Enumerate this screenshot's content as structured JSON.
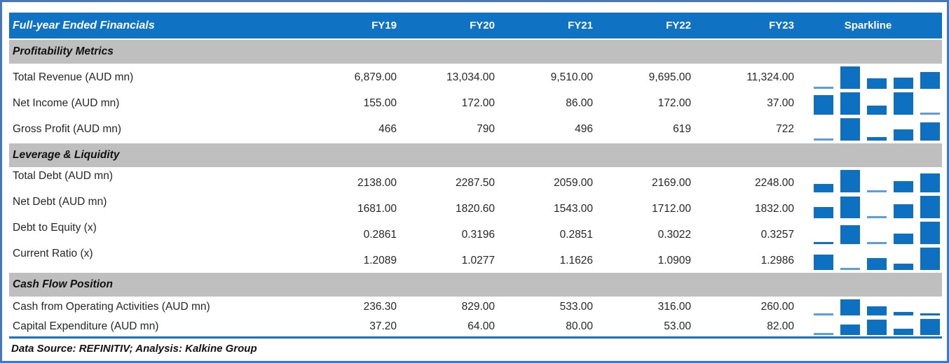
{
  "chart_data": {
    "type": "table",
    "title": "Full-year Ended Financials",
    "columns": [
      "FY19",
      "FY20",
      "FY21",
      "FY22",
      "FY23"
    ],
    "sparkline_column": "Sparkline",
    "sparkline_type": "bar",
    "sections": [
      {
        "title": "Profitability Metrics",
        "rows": [
          {
            "label": "Total Revenue (AUD mn)",
            "display": [
              "6,879.00",
              "13,034.00",
              "9,510.00",
              "9,695.00",
              "11,324.00"
            ],
            "values": [
              6879,
              13034,
              9510,
              9695,
              11324
            ]
          },
          {
            "label": "Net Income (AUD mn)",
            "display": [
              "155.00",
              "172.00",
              "86.00",
              "172.00",
              "37.00"
            ],
            "values": [
              155,
              172,
              86,
              172,
              37
            ]
          },
          {
            "label": "Gross Profit (AUD mn)",
            "display": [
              "466",
              "790",
              "496",
              "619",
              "722"
            ],
            "values": [
              466,
              790,
              496,
              619,
              722
            ]
          }
        ]
      },
      {
        "title": "Leverage & Liquidity",
        "rows": [
          {
            "label": "Total Debt (AUD mn)",
            "display": [
              "2138.00",
              "2287.50",
              "2059.00",
              "2169.00",
              "2248.00"
            ],
            "values": [
              2138,
              2287.5,
              2059,
              2169,
              2248
            ]
          },
          {
            "label": "Net Debt (AUD mn)",
            "display": [
              "1681.00",
              "1820.60",
              "1543.00",
              "1712.00",
              "1832.00"
            ],
            "values": [
              1681,
              1820.6,
              1543,
              1712,
              1832
            ]
          },
          {
            "label": "Debt to Equity (x)",
            "display": [
              "0.2861",
              "0.3196",
              "0.2851",
              "0.3022",
              "0.3257"
            ],
            "values": [
              0.2861,
              0.3196,
              0.2851,
              0.3022,
              0.3257
            ]
          },
          {
            "label": "Current Ratio (x)",
            "display": [
              "1.2089",
              "1.0277",
              "1.1626",
              "1.0909",
              "1.2986"
            ],
            "values": [
              1.2089,
              1.0277,
              1.1626,
              1.0909,
              1.2986
            ]
          }
        ]
      },
      {
        "title": "Cash Flow Position",
        "rows": [
          {
            "label": "Cash from Operating Activities (AUD mn)",
            "display": [
              "236.30",
              "829.00",
              "533.00",
              "316.00",
              "260.00"
            ],
            "values": [
              236.3,
              829,
              533,
              316,
              260
            ]
          },
          {
            "label": "Capital Expenditure (AUD mn)",
            "display": [
              "37.20",
              "64.00",
              "80.00",
              "53.00",
              "82.00"
            ],
            "values": [
              37.2,
              64,
              80,
              53,
              82
            ]
          }
        ]
      }
    ],
    "footer": "Data Source: REFINITIV; Analysis: Kalkine Group"
  },
  "colors": {
    "header_blue": "#0F72C2",
    "band_gray": "#BFBFBF",
    "bar_blue": "#0D70C0",
    "low_point_blue": "#5B9FD8",
    "border_blue": "#4577BE",
    "rule_blue": "#1472C4"
  }
}
